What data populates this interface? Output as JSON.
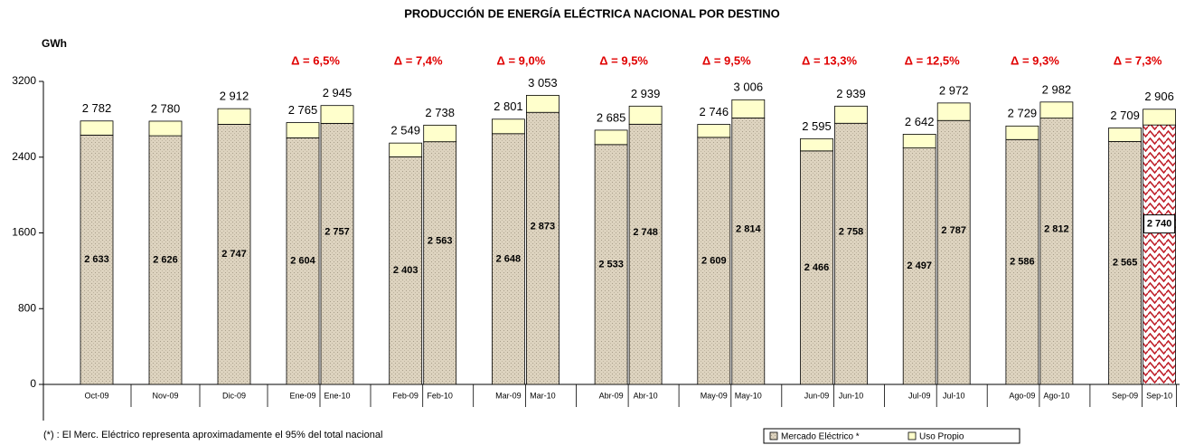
{
  "chart_data": {
    "type": "stacked_bar",
    "title": "PRODUCCIÓN DE ENERGÍA ELÉCTRICA NACIONAL POR DESTINO",
    "y_label": "GWh",
    "footnote": "(*) : El Merc. Eléctrico representa aproximadamente el 95% del total nacional",
    "categories": [
      "Oct-09",
      "Nov-09",
      "Dic-09",
      "Ene-09",
      "Ene-10",
      "Feb-09",
      "Feb-10",
      "Mar-09",
      "Mar-10",
      "Abr-09",
      "Abr-10",
      "May-09",
      "May-10",
      "Jun-09",
      "Jun-10",
      "Jul-09",
      "Jul-10",
      "Ago-09",
      "Ago-10",
      "Sep-09",
      "Sep-10"
    ],
    "series": [
      {
        "name": "Mercado Eléctrico *",
        "color": "#ddd3bf",
        "highlight_color": "#c0202a",
        "values": [
          2633,
          2626,
          2747,
          2604,
          2757,
          2403,
          2563,
          2648,
          2873,
          2533,
          2748,
          2609,
          2814,
          2466,
          2758,
          2497,
          2787,
          2586,
          2812,
          2565,
          2740
        ],
        "value_labels": [
          "2 633",
          "2 626",
          "2 747",
          "2 604",
          "2 757",
          "2 403",
          "2 563",
          "2 648",
          "2 873",
          "2 533",
          "2 748",
          "2 609",
          "2 814",
          "2 466",
          "2 758",
          "2 497",
          "2 787",
          "2 586",
          "2 812",
          "2 565",
          "2 740"
        ]
      },
      {
        "name": "Uso Propio",
        "color": "#ffffcc",
        "values": [
          149,
          154,
          165,
          161,
          188,
          146,
          175,
          153,
          180,
          152,
          191,
          137,
          192,
          129,
          181,
          145,
          185,
          143,
          170,
          144,
          166
        ]
      }
    ],
    "totals": [
      2782,
      2780,
      2912,
      2765,
      2945,
      2549,
      2738,
      2801,
      3053,
      2685,
      2939,
      2746,
      3006,
      2595,
      2939,
      2642,
      2972,
      2729,
      2982,
      2709,
      2906
    ],
    "total_labels": [
      "2 782",
      "2 780",
      "2 912",
      "2 765",
      "2 945",
      "2 549",
      "2 738",
      "2 801",
      "3 053",
      "2 685",
      "2 939",
      "2 746",
      "3 006",
      "2 595",
      "2 939",
      "2 642",
      "2 972",
      "2 729",
      "2 982",
      "2 709",
      "2 906"
    ],
    "annotations": [
      "Δ = 6,5%",
      "Δ = 7,4%",
      "Δ = 9,0%",
      "Δ = 9,5%",
      "Δ = 9,5%",
      "Δ = 13,3%",
      "Δ = 12,5%",
      "Δ = 9,3%",
      "Δ = 7,3%"
    ],
    "annotation_color": "#e00000",
    "ylim": [
      0,
      3200
    ],
    "yticks": [
      0,
      800,
      1600,
      2400,
      3200
    ],
    "grid": false
  }
}
